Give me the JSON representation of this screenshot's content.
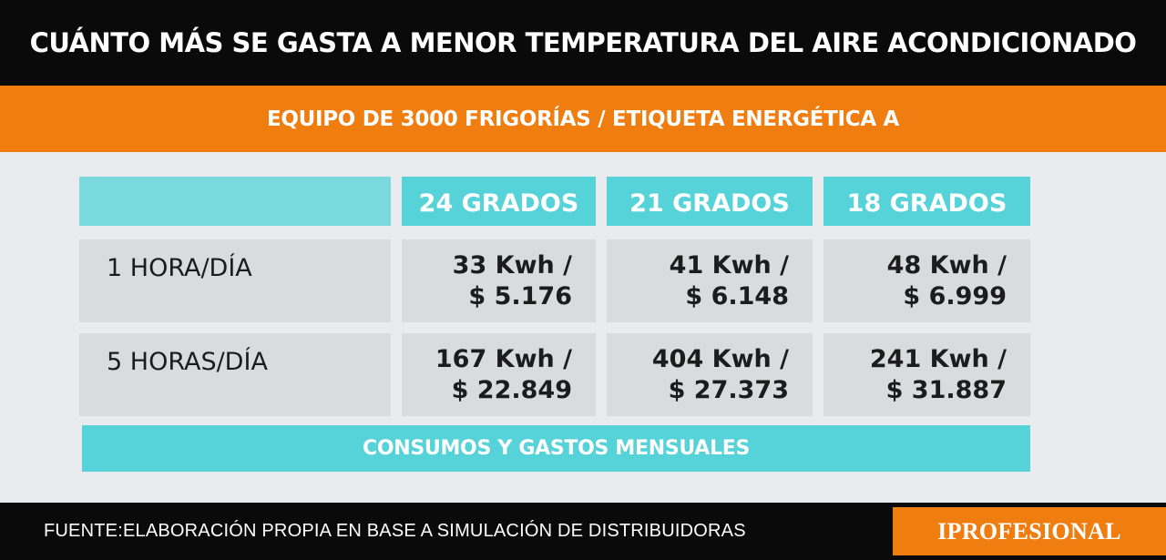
{
  "title": "CUÁNTO MÁS SE GASTA A MENOR TEMPERATURA DEL AIRE ACONDICIONADO",
  "subtitle": "EQUIPO DE 3000 FRIGORÍAS / ETIQUETA ENERGÉTICA A",
  "table": {
    "columns": [
      "24 GRADOS",
      "21 GRADOS",
      "18 GRADOS"
    ],
    "rows": [
      {
        "label": "1 HORA/DÍA",
        "cells": [
          {
            "kwh": "33 Kwh /",
            "cost": "$ 5.176"
          },
          {
            "kwh": "41 Kwh /",
            "cost": "$ 6.148"
          },
          {
            "kwh": "48 Kwh /",
            "cost": "$ 6.999"
          }
        ]
      },
      {
        "label": "5 HORAS/DÍA",
        "cells": [
          {
            "kwh": "167 Kwh /",
            "cost": "$ 22.849"
          },
          {
            "kwh": "404 Kwh /",
            "cost": "$ 27.373"
          },
          {
            "kwh": "241 Kwh /",
            "cost": "$ 31.887"
          }
        ]
      }
    ],
    "footer": "CONSUMOS Y GASTOS MENSUALES"
  },
  "source": "FUENTE:ELABORACIÓN PROPIA EN BASE A SIMULACIÓN DE DISTRIBUIDORAS",
  "brand": "IPROFESIONAL",
  "colors": {
    "black": "#0a0a0a",
    "orange": "#ef7d10",
    "cyan": "#55d3d8",
    "cell_gray": "#d9dbde",
    "background": "#e9ebee"
  }
}
